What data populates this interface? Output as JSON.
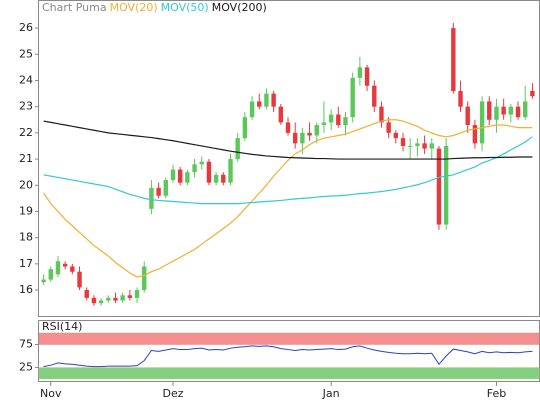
{
  "chart_data": [
    {
      "type": "candlestick",
      "title": "Chart Puma",
      "categories": [
        null,
        "Nov",
        null,
        null,
        null,
        null,
        null,
        null,
        null,
        null,
        null,
        null,
        null,
        null,
        null,
        null,
        null,
        null,
        "Dez",
        null,
        null,
        null,
        null,
        null,
        null,
        null,
        null,
        null,
        null,
        null,
        null,
        null,
        null,
        null,
        null,
        null,
        null,
        null,
        null,
        null,
        "Jan",
        null,
        null,
        null,
        null,
        null,
        null,
        null,
        null,
        null,
        null,
        null,
        null,
        null,
        null,
        null,
        null,
        null,
        null,
        null,
        null,
        null,
        null,
        "Feb",
        null,
        null,
        null,
        null,
        null
      ],
      "up_color": "#5cc85c",
      "down_color": "#e8383d",
      "open": [
        16.3,
        16.4,
        16.6,
        17.0,
        16.9,
        16.7,
        16.0,
        15.7,
        15.5,
        15.6,
        15.7,
        15.6,
        15.8,
        15.7,
        16.0,
        19.1,
        19.9,
        19.6,
        20.2,
        20.6,
        20.1,
        20.5,
        20.8,
        20.9,
        20.1,
        20.4,
        20.1,
        21.0,
        21.8,
        22.6,
        23.2,
        23.0,
        23.5,
        23.0,
        22.4,
        22.0,
        21.6,
        22.0,
        21.9,
        22.3,
        22.4,
        22.7,
        22.3,
        22.6,
        24.1,
        24.5,
        23.8,
        23.0,
        22.4,
        22.0,
        21.8,
        21.5,
        21.5,
        21.6,
        21.4,
        21.4,
        18.5,
        26.0,
        23.6,
        23.0,
        22.3,
        21.6,
        23.2,
        22.5,
        23.0,
        22.7,
        23.0,
        22.6,
        23.6
      ],
      "high": [
        16.6,
        16.9,
        17.3,
        17.1,
        17.0,
        16.9,
        16.1,
        15.8,
        15.7,
        15.8,
        15.9,
        15.9,
        16.0,
        16.1,
        17.1,
        20.2,
        20.1,
        20.3,
        20.8,
        20.7,
        20.6,
        21.0,
        21.1,
        21.0,
        20.5,
        20.5,
        21.2,
        22.0,
        22.8,
        23.4,
        23.5,
        23.7,
        23.6,
        23.1,
        22.6,
        22.4,
        22.2,
        22.4,
        22.4,
        23.2,
        22.9,
        23.0,
        22.8,
        24.3,
        24.9,
        24.6,
        24.0,
        23.2,
        22.6,
        22.1,
        22.0,
        21.8,
        21.8,
        21.9,
        21.8,
        21.5,
        21.8,
        26.2,
        24.0,
        23.2,
        22.5,
        23.4,
        23.4,
        23.3,
        23.3,
        23.1,
        23.2,
        23.8,
        23.9
      ],
      "low": [
        16.2,
        16.3,
        16.5,
        16.8,
        16.6,
        16.0,
        15.6,
        15.4,
        15.4,
        15.5,
        15.5,
        15.5,
        15.6,
        15.5,
        15.9,
        18.9,
        19.5,
        19.5,
        20.1,
        20.0,
        20.0,
        20.3,
        20.6,
        20.0,
        20.0,
        20.0,
        20.0,
        20.9,
        21.7,
        22.5,
        22.9,
        22.9,
        22.8,
        22.3,
        21.9,
        21.4,
        21.2,
        21.7,
        21.6,
        22.0,
        22.1,
        22.2,
        21.9,
        22.4,
        23.8,
        23.6,
        22.8,
        22.2,
        21.8,
        21.6,
        21.3,
        21.0,
        21.1,
        21.2,
        21.0,
        18.3,
        18.3,
        23.5,
        22.8,
        22.0,
        21.4,
        21.3,
        22.3,
        22.0,
        22.5,
        22.4,
        22.5,
        22.5,
        23.3
      ],
      "close": [
        16.4,
        16.8,
        17.1,
        16.9,
        16.7,
        16.1,
        15.7,
        15.5,
        15.6,
        15.7,
        15.6,
        15.8,
        15.7,
        16.0,
        16.9,
        19.9,
        19.6,
        20.2,
        20.6,
        20.1,
        20.5,
        20.8,
        20.9,
        20.1,
        20.4,
        20.1,
        21.0,
        21.8,
        22.6,
        23.2,
        23.0,
        23.5,
        23.0,
        22.4,
        22.0,
        21.6,
        22.0,
        21.9,
        22.3,
        22.4,
        22.7,
        22.3,
        22.6,
        24.1,
        24.5,
        23.8,
        23.0,
        22.4,
        22.0,
        21.8,
        21.5,
        21.5,
        21.6,
        21.4,
        21.6,
        18.5,
        21.5,
        23.6,
        23.0,
        22.3,
        21.6,
        23.2,
        22.5,
        23.0,
        22.7,
        23.0,
        22.6,
        23.2,
        23.4
      ],
      "series": [
        {
          "name": "MOV(20)",
          "color": "#f0b030",
          "values": [
            19.7,
            19.3,
            19.0,
            18.7,
            18.45,
            18.2,
            17.95,
            17.7,
            17.5,
            17.3,
            17.05,
            16.85,
            16.65,
            16.5,
            16.55,
            16.7,
            16.8,
            16.95,
            17.1,
            17.25,
            17.4,
            17.55,
            17.75,
            17.95,
            18.15,
            18.35,
            18.55,
            18.8,
            19.1,
            19.4,
            19.7,
            20.0,
            20.35,
            20.65,
            20.95,
            21.2,
            21.35,
            21.55,
            21.7,
            21.8,
            21.85,
            21.9,
            21.95,
            22.05,
            22.15,
            22.25,
            22.35,
            22.45,
            22.5,
            22.5,
            22.45,
            22.35,
            22.25,
            22.1,
            22.0,
            21.9,
            21.85,
            21.9,
            22.0,
            22.1,
            22.15,
            22.2,
            22.25,
            22.3,
            22.3,
            22.25,
            22.2,
            22.2,
            22.2
          ]
        },
        {
          "name": "MOV(50)",
          "color": "#33c8d8",
          "values": [
            20.4,
            20.35,
            20.3,
            20.25,
            20.2,
            20.15,
            20.1,
            20.05,
            20.0,
            19.95,
            19.85,
            19.75,
            19.65,
            19.58,
            19.5,
            19.45,
            19.42,
            19.4,
            19.38,
            19.36,
            19.34,
            19.32,
            19.3,
            19.3,
            19.3,
            19.3,
            19.3,
            19.3,
            19.32,
            19.34,
            19.36,
            19.38,
            19.4,
            19.42,
            19.45,
            19.48,
            19.5,
            19.52,
            19.55,
            19.57,
            19.59,
            19.6,
            19.62,
            19.65,
            19.68,
            19.7,
            19.73,
            19.76,
            19.8,
            19.84,
            19.9,
            19.96,
            20.02,
            20.1,
            20.2,
            20.3,
            20.35,
            20.4,
            20.5,
            20.6,
            20.7,
            20.85,
            20.95,
            21.05,
            21.2,
            21.35,
            21.5,
            21.65,
            21.85
          ]
        },
        {
          "name": "MOV(200)",
          "color": "#1a1a1a",
          "values": [
            22.45,
            22.4,
            22.35,
            22.3,
            22.25,
            22.2,
            22.15,
            22.1,
            22.05,
            22.0,
            21.97,
            21.94,
            21.91,
            21.88,
            21.85,
            21.82,
            21.78,
            21.74,
            21.7,
            21.65,
            21.6,
            21.55,
            21.5,
            21.45,
            21.4,
            21.35,
            21.3,
            21.26,
            21.22,
            21.18,
            21.15,
            21.12,
            21.1,
            21.08,
            21.06,
            21.05,
            21.04,
            21.03,
            21.02,
            21.02,
            21.01,
            21,
            21,
            21,
            21,
            21,
            21,
            21,
            21,
            21,
            21,
            21,
            21,
            21,
            21,
            21,
            21,
            21.02,
            21.03,
            21.04,
            21.05,
            21.05,
            21.06,
            21.06,
            21.07,
            21.07,
            21.08,
            21.08,
            21.08
          ]
        }
      ],
      "ylim": [
        15.2,
        26.5
      ],
      "yticks": [
        16,
        17,
        18,
        19,
        20,
        21,
        22,
        23,
        24,
        25,
        26
      ]
    },
    {
      "type": "line",
      "title": "RSI(14)",
      "color": "#2a3fd0",
      "values": [
        27,
        30,
        35,
        33,
        32,
        30,
        28,
        27,
        27,
        28,
        28,
        28,
        28,
        29,
        40,
        62,
        60,
        63,
        66,
        64,
        64,
        66,
        67,
        63,
        64,
        63,
        67,
        69,
        70,
        72,
        71,
        72,
        70,
        66,
        64,
        62,
        64,
        63,
        64,
        65,
        66,
        64,
        65,
        70,
        72,
        67,
        63,
        60,
        58,
        56,
        55,
        55,
        56,
        55,
        56,
        32,
        50,
        65,
        62,
        59,
        55,
        60,
        57,
        59,
        57,
        58,
        57,
        59,
        60
      ],
      "ylim": [
        0,
        100
      ],
      "yticks": [
        25,
        75
      ],
      "bands": [
        {
          "from": 75,
          "to": 100,
          "color": "#f49090"
        },
        {
          "from": 0,
          "to": 25,
          "color": "#80d080"
        }
      ]
    }
  ]
}
